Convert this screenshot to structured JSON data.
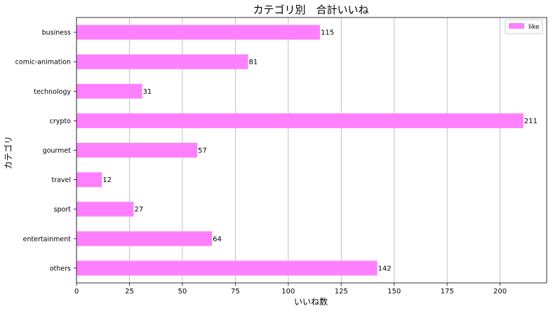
{
  "chart_data": {
    "type": "bar",
    "orientation": "horizontal",
    "title": "カテゴリ別　合計いいね",
    "xlabel": "いいね数",
    "ylabel": "カテゴリ",
    "categories": [
      "business",
      "comic-animation",
      "technology",
      "crypto",
      "gourmet",
      "travel",
      "sport",
      "entertainment",
      "others"
    ],
    "series": [
      {
        "name": "like",
        "values": [
          115,
          81,
          31,
          211,
          57,
          12,
          27,
          64,
          142
        ],
        "color": "#ff80ff"
      }
    ],
    "data_labels": [
      "115",
      "81",
      "31",
      "211",
      "57",
      "12",
      "27",
      "64",
      "142"
    ],
    "xlim": [
      0,
      222
    ],
    "xticks": [
      0,
      25,
      50,
      75,
      100,
      125,
      150,
      175,
      200
    ],
    "xtick_labels": [
      "0",
      "25",
      "50",
      "75",
      "100",
      "125",
      "150",
      "175",
      "200"
    ],
    "grid": "vertical",
    "legend": "top-right"
  }
}
